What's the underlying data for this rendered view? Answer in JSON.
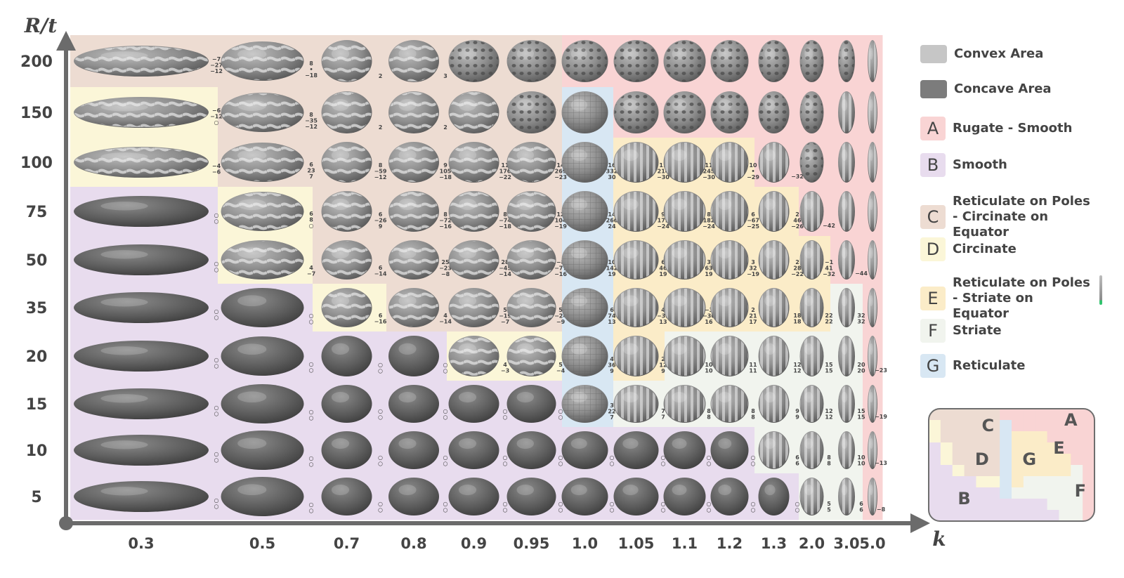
{
  "axes": {
    "y_title": "R/t",
    "x_title": "k",
    "y_ticks": [
      "200",
      "150",
      "100",
      "75",
      "50",
      "35",
      "20",
      "15",
      "10",
      "5"
    ],
    "x_ticks": [
      "0.3",
      "0.5",
      "0.7",
      "0.8",
      "0.9",
      "0.95",
      "1.0",
      "1.05",
      "1.1",
      "1.2",
      "1.3",
      "2.0",
      "3.0",
      "5.0"
    ]
  },
  "legend": {
    "convex": {
      "label": "Convex Area",
      "color": "#c6c6c6"
    },
    "concave": {
      "label": "Concave Area",
      "color": "#7c7c7c"
    },
    "categories": [
      {
        "letter": "A",
        "label": "Rugate - Smooth",
        "color": "#f9d4d4"
      },
      {
        "letter": "B",
        "label": "Smooth",
        "color": "#e8dcee"
      },
      {
        "letter": "C",
        "label": "Reticulate on Poles - Circinate on Equator",
        "color": "#eddcd2"
      },
      {
        "letter": "D",
        "label": "Circinate",
        "color": "#fbf6d8"
      },
      {
        "letter": "E",
        "label": "Reticulate on Poles - Striate on Equator",
        "color": "#fbecc8"
      },
      {
        "letter": "F",
        "label": "Striate",
        "color": "#f1f4ee"
      },
      {
        "letter": "G",
        "label": "Reticulate",
        "color": "#d8e7f3"
      }
    ]
  },
  "inset_letters": [
    "A",
    "B",
    "C",
    "D",
    "E",
    "F",
    "G"
  ],
  "regions": [
    "CCCCCCAAAAAAAA",
    "DCCCCCGAAAAAAA",
    "DCCCCCGEEEAAAA",
    "BDCCCCGEEEEAAA",
    "BDCCCCGEEEEEAA",
    "BBDCCCGEEEEEFA",
    "BBBBDDGEFFFFFA",
    "BBBBBBGFFFFFFA",
    "BBBBBBBBBBFFFA",
    "BBBBBBBBBBBFFA"
  ],
  "patterns": [
    "SSSSCCCCCCCCCT",
    "SSSSSCGCCCCCTT",
    "SSSSSSGRRRRCTT",
    "PSSSSSGRRRRRTT",
    "PSSSSSGRRRRRTT",
    "PPSSSSGRRRRRTT",
    "PPPPSSGRRRRRTT",
    "PPPPPPGRRRRRTT",
    "PPPPPPPPPPRRTT",
    "PPPPPPPPPPPRTT"
  ],
  "cell_labels": [
    [
      "−7\n−27\n−12",
      "8\n•\n−18",
      "2",
      "3",
      "",
      "",
      "",
      "",
      "",
      "",
      "",
      "",
      "",
      ""
    ],
    [
      "−6\n−12\n○",
      "8\n−35\n−12",
      "2",
      "2",
      "",
      "",
      "",
      "",
      "",
      "",
      "",
      "",
      "",
      ""
    ],
    [
      "−4\n−6",
      "6\n23\n7",
      "8\n−59\n−12",
      "9\n105\n−18",
      "11\n176\n−22",
      "14\n269\n−23",
      "16\n332\n30",
      "11\n214\n−30",
      "11\n245\n−30",
      "10\n•\n−29",
      "−32",
      "",
      "",
      ""
    ],
    [
      "○\n○",
      "6\n8\n○",
      "6\n−26\n9",
      "8\n−72\n−16",
      "8\n−74\n−18",
      "12\n104\n−19",
      "14\n266\n24",
      "9\n179\n−24",
      "8\n182\n−24",
      "6\n−67\n−25",
      "2\n46\n−26",
      "−42",
      "",
      ""
    ],
    [
      "○\n○",
      "4\n−7",
      "6\n−14",
      "25\n−23\n−8",
      "28\n−45\n−14",
      "−8\n−77\n−16",
      "10\n142\n19",
      "6\n46\n19",
      "3\n63\n19",
      "3\n32\n−19",
      "2\n28\n−22",
      "−1\n41\n−32",
      "−44",
      ""
    ],
    [
      "○\n○",
      "○\n○",
      "6\n−16",
      "4\n−14",
      "5\n−19\n−7",
      "5\n−24\n−9",
      "6\n74\n13",
      "4\n−33\n13",
      "−3\n−30\n16",
      "2\n21\n17",
      "18\n18",
      "22\n22",
      "32\n32",
      ""
    ],
    [
      "○\n○",
      "○\n○",
      "○\n○",
      "○\n○",
      "4\n−3",
      "5\n−4",
      "4\n36\n9",
      "2\n12\n9",
      "10\n10",
      "11\n11",
      "12\n12",
      "15\n15",
      "20\n20",
      "−23"
    ],
    [
      "○\n○",
      "○\n○",
      "○\n○",
      "○\n○",
      "○\n○",
      "○\n○",
      "3\n22\n7",
      "7\n7",
      "8\n8",
      "8\n8",
      "9\n9",
      "12\n12",
      "15\n15",
      "−19"
    ],
    [
      "○\n○",
      "○\n○",
      "○\n○",
      "○\n○",
      "○\n○",
      "○\n○",
      "○\n○",
      "○\n○",
      "○\n○",
      "○\n○",
      "6\n6",
      "8\n8",
      "10\n10",
      "−13"
    ],
    [
      "○\n○",
      "○\n○",
      "○\n○",
      "○\n○",
      "○\n○",
      "○\n○",
      "○\n○",
      "○\n○",
      "○\n○",
      "○\n○",
      "○\n○",
      "5\n5",
      "6\n6",
      "−8"
    ]
  ],
  "colors": {
    "axis": "#6b6b6b",
    "surface_light": "#b9b9b9",
    "surface_dark": "#565656"
  }
}
